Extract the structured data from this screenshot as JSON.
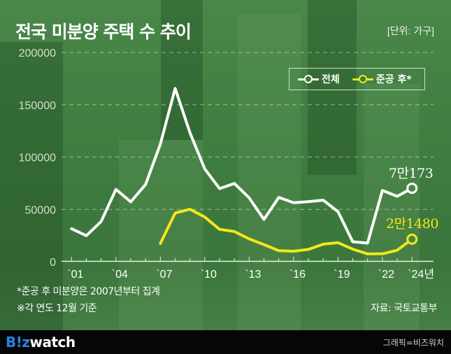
{
  "header": {
    "title": "전국 미분양 주택 수 추이",
    "unit": "[단위: 가구]"
  },
  "legend": {
    "items": [
      {
        "label": "전체",
        "color": "#ffffff"
      },
      {
        "label": "준공 후*",
        "color": "#f2e81a"
      }
    ]
  },
  "end_labels": {
    "total": "7만173",
    "post_completion": "2만1480"
  },
  "notes": {
    "line1": "*준공 후 미분양은 2007년부터 집계",
    "line2": "※각 연도 12월 기준",
    "source": "자료: 국토교통부"
  },
  "footer": {
    "logo_biz": "B!z",
    "logo_watch": "watch",
    "credit": "그래픽=비즈워치"
  },
  "colors": {
    "background": "#3f7a3f",
    "total_line": "#ffffff",
    "post_line": "#f2e81a",
    "footer_bg": "#060606",
    "logo_blue": "#2b7fe8"
  },
  "chart_data": {
    "type": "line",
    "title": "전국 미분양 주택 수 추이",
    "unit": "가구",
    "xlabel": "",
    "ylabel": "",
    "ylim": [
      0,
      200000
    ],
    "yticks": [
      0,
      50000,
      100000,
      150000,
      200000
    ],
    "ytick_labels": [
      "0",
      "50000",
      "100000",
      "150000",
      "200000"
    ],
    "x": [
      2001,
      2002,
      2003,
      2004,
      2005,
      2006,
      2007,
      2008,
      2009,
      2010,
      2011,
      2012,
      2013,
      2014,
      2015,
      2016,
      2017,
      2018,
      2019,
      2020,
      2021,
      2022,
      2023,
      2024
    ],
    "xtick_labels": [
      {
        "year": 2001,
        "label": "`01"
      },
      {
        "year": 2004,
        "label": "`04"
      },
      {
        "year": 2007,
        "label": "`07"
      },
      {
        "year": 2010,
        "label": "`10"
      },
      {
        "year": 2013,
        "label": "`13"
      },
      {
        "year": 2016,
        "label": "`16"
      },
      {
        "year": 2019,
        "label": "`19"
      },
      {
        "year": 2022,
        "label": "`22"
      },
      {
        "year": 2024,
        "label": "`24년"
      }
    ],
    "grid": "horizontal dashed",
    "legend_position": "top-right",
    "series": [
      {
        "name": "전체",
        "color": "#ffffff",
        "x": [
          2001,
          2002,
          2003,
          2004,
          2005,
          2006,
          2007,
          2008,
          2009,
          2010,
          2011,
          2012,
          2013,
          2014,
          2015,
          2016,
          2017,
          2018,
          2019,
          2020,
          2021,
          2022,
          2023,
          2024
        ],
        "values": [
          31500,
          24900,
          38300,
          69100,
          57200,
          73800,
          112300,
          165600,
          123300,
          88700,
          69800,
          74800,
          61100,
          40400,
          61500,
          56400,
          57300,
          58800,
          47800,
          19000,
          17700,
          68100,
          62500,
          70173
        ],
        "end_label": "7만173"
      },
      {
        "name": "준공 후*",
        "color": "#f2e81a",
        "x": [
          2007,
          2008,
          2009,
          2010,
          2011,
          2012,
          2013,
          2014,
          2015,
          2016,
          2017,
          2018,
          2019,
          2020,
          2021,
          2022,
          2023,
          2024
        ],
        "values": [
          17400,
          46500,
          50100,
          42700,
          30900,
          28800,
          21800,
          16300,
          10500,
          10000,
          11700,
          16700,
          18100,
          12000,
          7400,
          7500,
          10900,
          21480
        ],
        "end_label": "2만1480"
      }
    ],
    "annotations": [
      "*준공 후 미분양은 2007년부터 집계",
      "※각 연도 12월 기준",
      "자료: 국토교통부"
    ]
  }
}
